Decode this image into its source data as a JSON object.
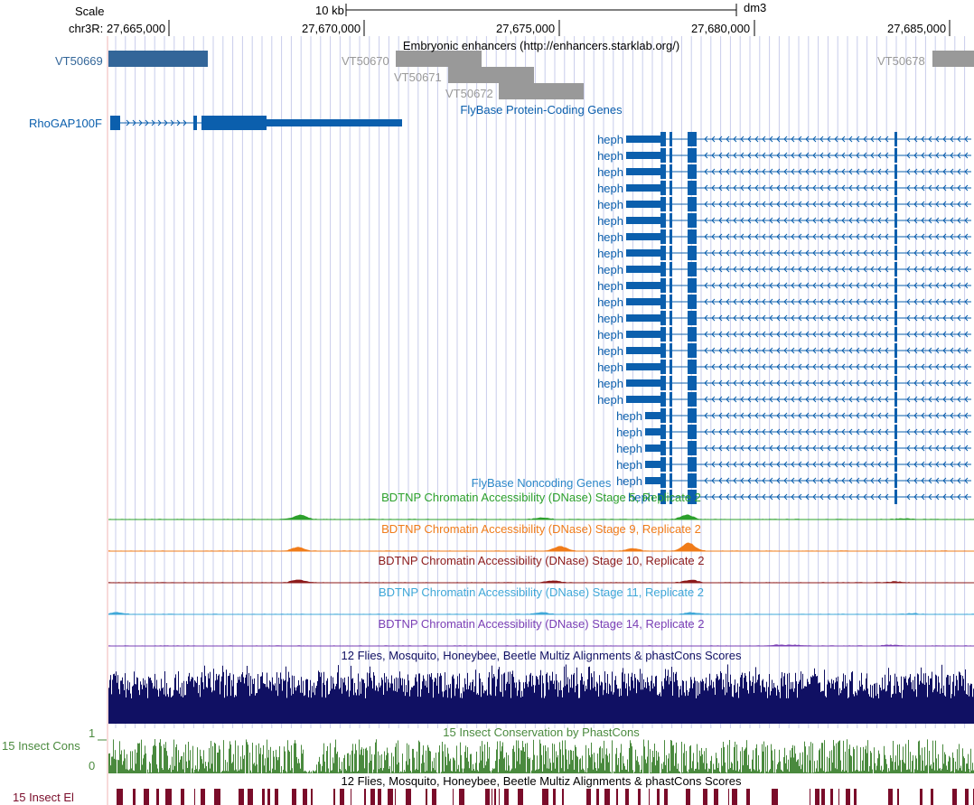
{
  "browser": {
    "scale_label": "Scale",
    "scale_bar_text": "10 kb",
    "assembly": "dm3",
    "chrom_prefix": "chr3R:",
    "ruler_ticks": [
      "27,665,000",
      "27,670,000",
      "27,675,000",
      "27,680,000",
      "27,685,000"
    ],
    "colors": {
      "gene": "#0b5fad",
      "enhancer_blue": "#336699",
      "enhancer_gray": "#999999",
      "guide_line": "#c8cceb",
      "side_line": "#f2b5b5",
      "multiz": "#101063",
      "phastcons": "#4a8a3e",
      "elements": "#7a0c2a"
    }
  },
  "tracks": {
    "enhancers": {
      "title": "Embryonic enhancers (http://enhancers.starklab.org/)",
      "items": [
        {
          "name": "VT50669",
          "color": "blue"
        },
        {
          "name": "VT50670",
          "color": "gray"
        },
        {
          "name": "VT50671",
          "color": "gray"
        },
        {
          "name": "VT50672",
          "color": "gray"
        },
        {
          "name": "VT50678",
          "color": "gray"
        }
      ]
    },
    "flybase_coding": {
      "title": "FlyBase Protein-Coding Genes",
      "genes": [
        {
          "name": "RhoGAP100F",
          "strand": "+"
        },
        {
          "name": "heph",
          "strand": "-"
        },
        {
          "name": "heph",
          "strand": "-"
        },
        {
          "name": "heph",
          "strand": "-"
        },
        {
          "name": "heph",
          "strand": "-"
        },
        {
          "name": "heph",
          "strand": "-"
        },
        {
          "name": "heph",
          "strand": "-"
        },
        {
          "name": "heph",
          "strand": "-"
        },
        {
          "name": "heph",
          "strand": "-"
        },
        {
          "name": "heph",
          "strand": "-"
        },
        {
          "name": "heph",
          "strand": "-"
        },
        {
          "name": "heph",
          "strand": "-"
        },
        {
          "name": "heph",
          "strand": "-"
        },
        {
          "name": "heph",
          "strand": "-"
        },
        {
          "name": "heph",
          "strand": "-"
        },
        {
          "name": "heph",
          "strand": "-"
        },
        {
          "name": "heph",
          "strand": "-"
        },
        {
          "name": "heph",
          "strand": "-"
        },
        {
          "name": "heph",
          "strand": "-"
        },
        {
          "name": "heph",
          "strand": "-"
        },
        {
          "name": "heph",
          "strand": "-"
        },
        {
          "name": "heph",
          "strand": "-"
        },
        {
          "name": "heph",
          "strand": "-"
        },
        {
          "name": "heph",
          "strand": "-"
        }
      ]
    },
    "flybase_noncoding": {
      "title": "FlyBase Noncoding Genes"
    },
    "dnase": [
      {
        "title": "BDTNP Chromatin Accessibility (DNase) Stage 5, Replicate 2",
        "color": "#2ca02c"
      },
      {
        "title": "BDTNP Chromatin Accessibility (DNase) Stage 9, Replicate 2",
        "color": "#f07c1a"
      },
      {
        "title": "BDTNP Chromatin Accessibility (DNase) Stage 10, Replicate 2",
        "color": "#8c1a1a"
      },
      {
        "title": "BDTNP Chromatin Accessibility (DNase) Stage 11, Replicate 2",
        "color": "#3fa8d8"
      },
      {
        "title": "BDTNP Chromatin Accessibility (DNase) Stage 14, Replicate 2",
        "color": "#7a3fb5"
      }
    ],
    "multiz": {
      "title": "12 Flies, Mosquito, Honeybee, Beetle Multiz Alignments & phastCons Scores"
    },
    "phastcons": {
      "title": "15 Insect Conservation by PhastCons",
      "side_label": "15 Insect Cons",
      "y_max": "1",
      "y_min": "0"
    },
    "elements": {
      "title": "12 Flies, Mosquito, Honeybee, Beetle Multiz Alignments & phastCons Scores",
      "side_label": "15 Insect El"
    }
  }
}
